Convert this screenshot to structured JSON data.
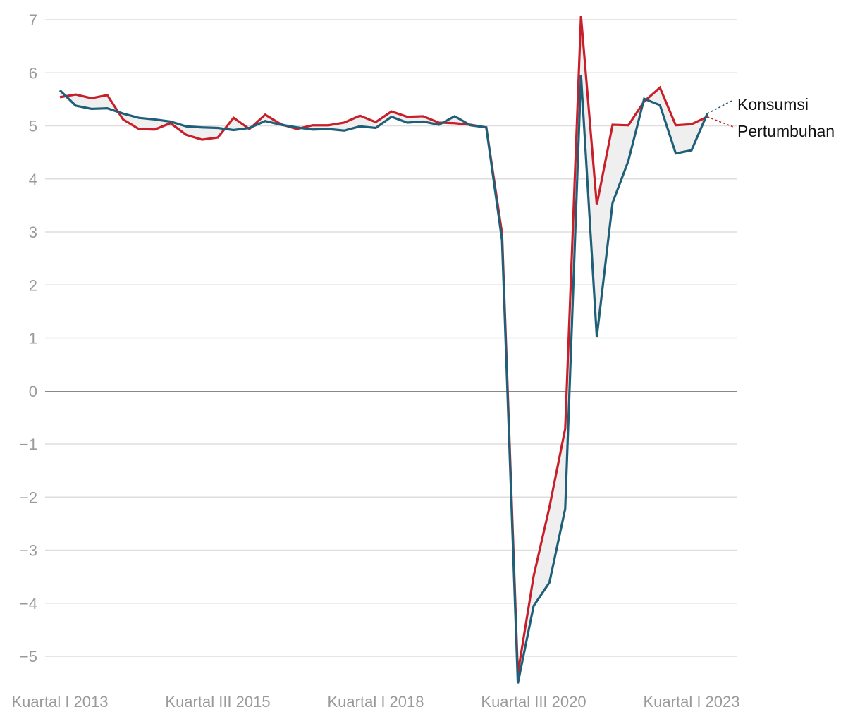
{
  "chart_data": {
    "type": "line",
    "x_tick_labels": [
      "Kuartal I 2013",
      "Kuartal III 2015",
      "Kuartal I 2018",
      "Kuartal III 2020",
      "Kuartal I 2023"
    ],
    "x_tick_positions": [
      0,
      10,
      20,
      30,
      40
    ],
    "ylim": [
      -5,
      7
    ],
    "y_ticks": [
      7,
      6,
      5,
      4,
      3,
      2,
      1,
      0,
      -1,
      -2,
      -3,
      -4,
      -5
    ],
    "y_tick_labels": [
      "7",
      "6",
      "5",
      "4",
      "3",
      "2",
      "1",
      "0",
      "−1",
      "−2",
      "−3",
      "−4",
      "−5"
    ],
    "grid": true,
    "zero_line": true,
    "shade_between_series": true,
    "series": [
      {
        "name": "Konsumsi",
        "color": "#1f5f78",
        "values": [
          5.67,
          5.38,
          5.32,
          5.33,
          5.23,
          5.15,
          5.12,
          5.08,
          4.99,
          4.97,
          4.96,
          4.92,
          4.96,
          5.09,
          5.02,
          4.97,
          4.93,
          4.94,
          4.91,
          4.99,
          4.96,
          5.17,
          5.06,
          5.08,
          5.02,
          5.18,
          5.01,
          4.97,
          2.84,
          -5.51,
          -4.05,
          -3.61,
          -2.22,
          5.96,
          1.02,
          3.55,
          4.34,
          5.51,
          5.39,
          4.48,
          4.54,
          5.23
        ]
      },
      {
        "name": "Pertumbuhan",
        "color": "#c8202a",
        "values": [
          5.54,
          5.59,
          5.52,
          5.58,
          5.12,
          4.94,
          4.93,
          5.05,
          4.83,
          4.74,
          4.78,
          5.15,
          4.94,
          5.21,
          5.03,
          4.94,
          5.01,
          5.01,
          5.06,
          5.19,
          5.07,
          5.27,
          5.17,
          5.18,
          5.06,
          5.05,
          5.02,
          4.97,
          2.97,
          -5.32,
          -3.49,
          -2.19,
          -0.71,
          7.07,
          3.51,
          5.02,
          5.01,
          5.46,
          5.72,
          5.01,
          5.03,
          5.17
        ]
      }
    ]
  }
}
